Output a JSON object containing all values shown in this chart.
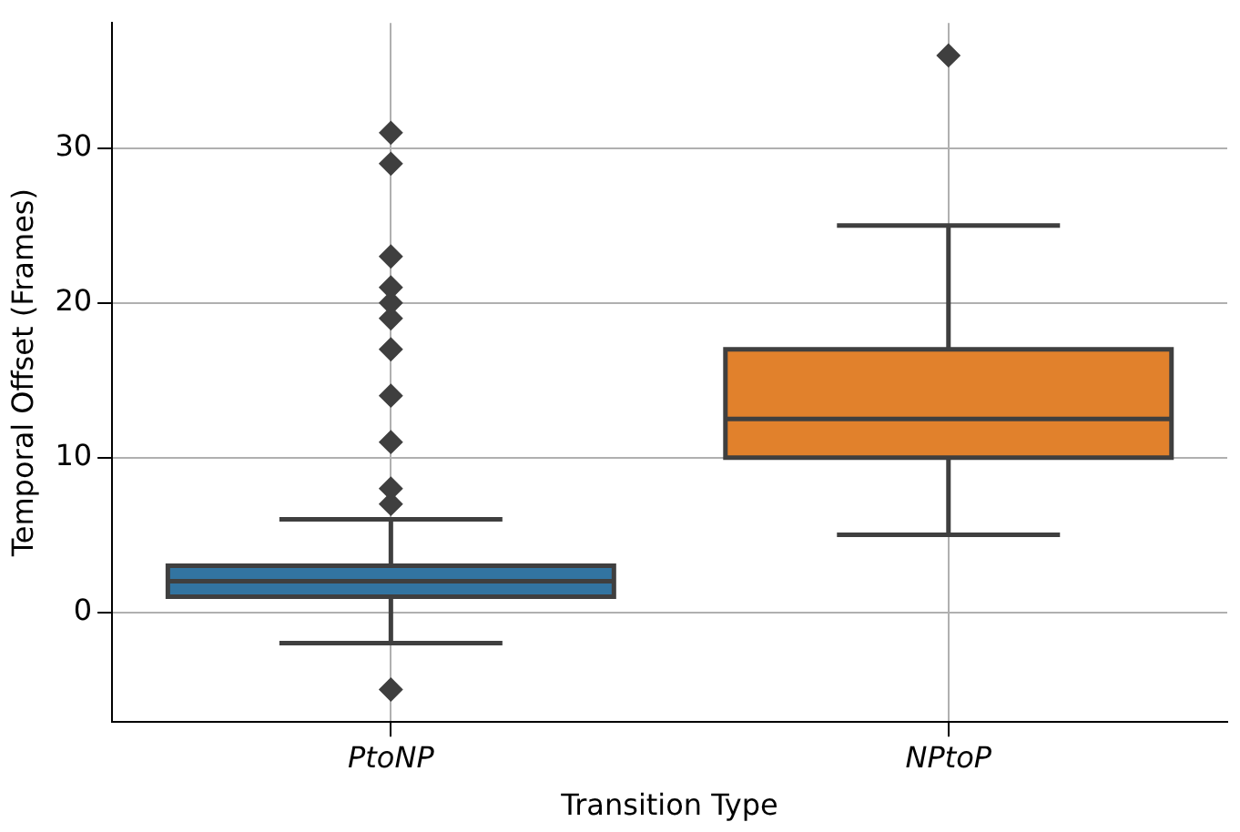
{
  "chart_data": {
    "type": "box",
    "xlabel": "Transition Type",
    "ylabel": "Temporal Offset (Frames)",
    "categories": [
      "PtoNP",
      "NPtoP"
    ],
    "colors": [
      "#3274a1",
      "#e1812c"
    ],
    "boxes": [
      {
        "low": -2,
        "q1": 1,
        "median": 2,
        "q3": 3,
        "high": 6,
        "outliers": [
          -5,
          7,
          8,
          11,
          14,
          17,
          19,
          20,
          21,
          23,
          29,
          31
        ]
      },
      {
        "low": 5,
        "q1": 10,
        "median": 12.5,
        "q3": 17,
        "high": 25,
        "outliers": [
          36
        ]
      }
    ],
    "ylim": [
      -7.1,
      38.1
    ],
    "yticks": [
      0,
      10,
      20,
      30
    ],
    "grid": true,
    "marker": "diamond"
  }
}
